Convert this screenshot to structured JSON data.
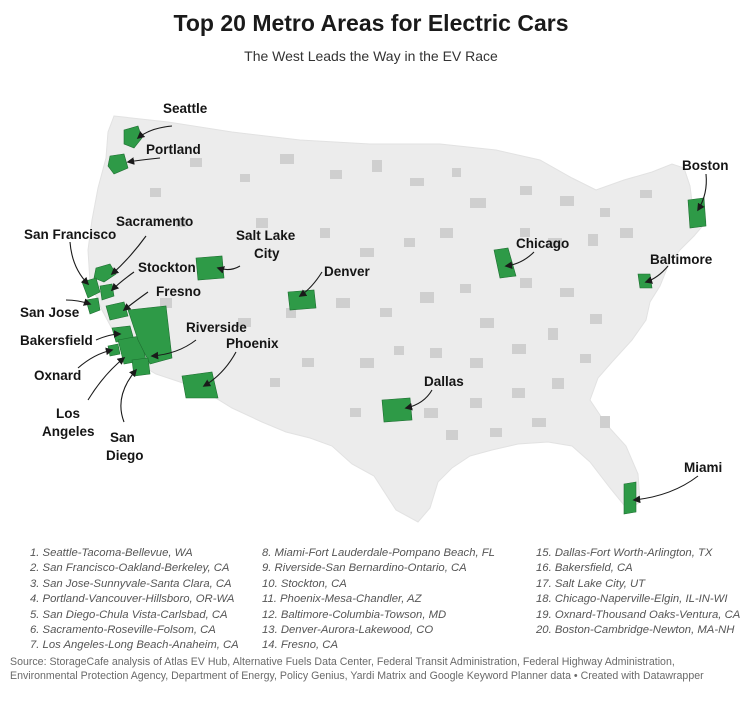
{
  "title": "Top 20 Metro Areas for Electric Cars",
  "subtitle": "The West Leads the Way in the EV Race",
  "colors": {
    "highlight": "#2e9a47",
    "metro_gray": "#c9c9c9",
    "land": "#ececec",
    "background": "#ffffff"
  },
  "map": {
    "type": "us-metro-choropleth",
    "labels": {
      "seattle": "Seattle",
      "portland": "Portland",
      "sacramento": "Sacramento",
      "san_francisco": "San Francisco",
      "stockton": "Stockton",
      "fresno": "Fresno",
      "san_jose": "San Jose",
      "bakersfield": "Bakersfield",
      "riverside": "Riverside",
      "phoenix": "Phoenix",
      "oxnard": "Oxnard",
      "los_angeles_1": "Los",
      "los_angeles_2": "Angeles",
      "san_diego_1": "San",
      "san_diego_2": "Diego",
      "salt_lake_1": "Salt Lake",
      "salt_lake_2": "City",
      "denver": "Denver",
      "dallas": "Dallas",
      "chicago": "Chicago",
      "baltimore": "Baltimore",
      "boston": "Boston",
      "miami": "Miami"
    }
  },
  "ranking": [
    "1. Seattle-Tacoma-Bellevue, WA",
    "2. San Francisco-Oakland-Berkeley, CA",
    "3. San Jose-Sunnyvale-Santa Clara, CA",
    "4. Portland-Vancouver-Hillsboro, OR-WA",
    "5. San Diego-Chula Vista-Carlsbad, CA",
    "6. Sacramento-Roseville-Folsom, CA",
    "7. Los Angeles-Long Beach-Anaheim, CA",
    "8. Miami-Fort Lauderdale-Pompano Beach, FL",
    "9. Riverside-San Bernardino-Ontario, CA",
    "10. Stockton, CA",
    "11. Phoenix-Mesa-Chandler, AZ",
    "12. Baltimore-Columbia-Towson, MD",
    "13. Denver-Aurora-Lakewood, CO",
    "14. Fresno, CA",
    "15. Dallas-Fort Worth-Arlington, TX",
    "16. Bakersfield, CA",
    "17. Salt Lake City, UT",
    "18. Chicago-Naperville-Elgin, IL-IN-WI",
    "19. Oxnard-Thousand Oaks-Ventura, CA",
    "20. Boston-Cambridge-Newton, MA-NH"
  ],
  "source": "Source: StorageCafe analysis of Atlas EV Hub, Alternative Fuels Data Center, Federal Transit Administration, Federal Highway Administration, Environmental Protection Agency, Department of Energy, Policy Genius, Yardi Matrix and Google Keyword Planner data • Created with Datawrapper"
}
